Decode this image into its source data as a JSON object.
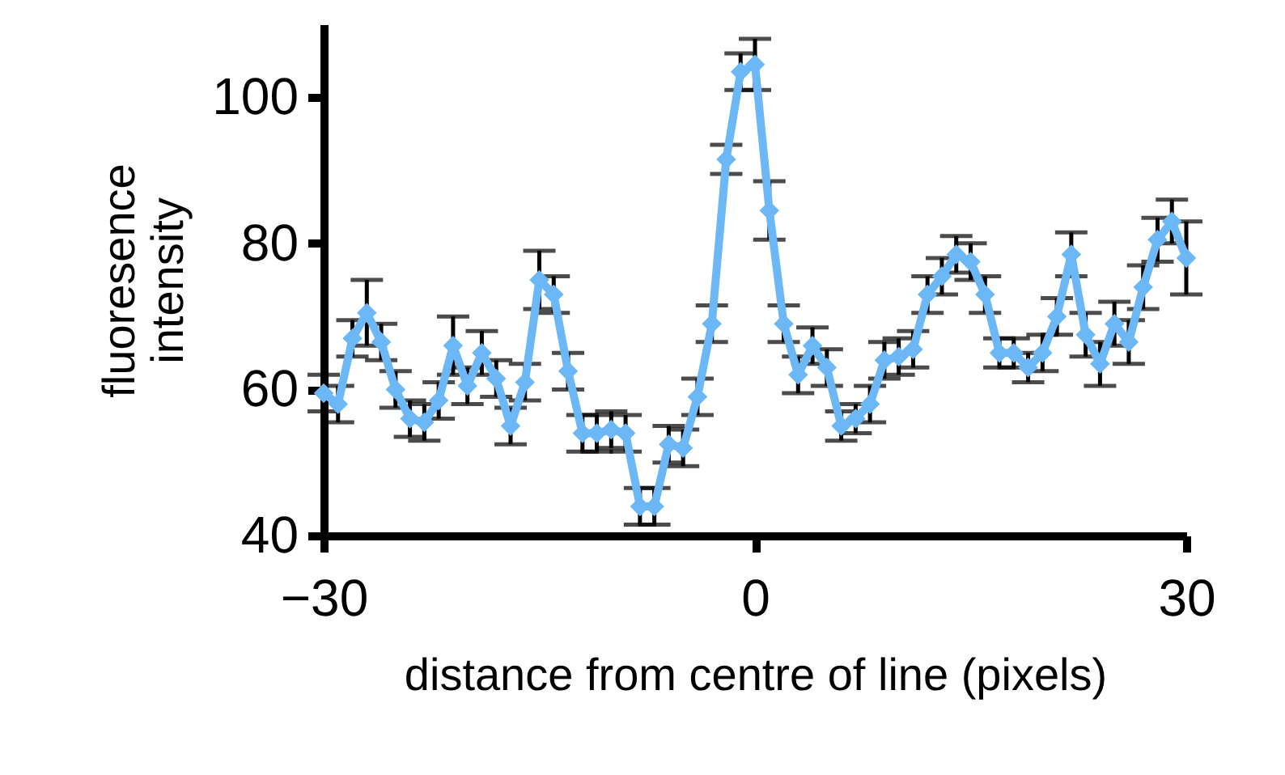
{
  "chart_data": {
    "type": "line",
    "xlabel": "distance from centre of line (pixels)",
    "ylabel": "fluoresence intensity",
    "x": [
      -30,
      -29,
      -28,
      -27,
      -26,
      -25,
      -24,
      -23,
      -22,
      -21,
      -20,
      -19,
      -18,
      -17,
      -16,
      -15,
      -14,
      -13,
      -12,
      -11,
      -10,
      -9,
      -8,
      -7,
      -6,
      -5,
      -4,
      -3,
      -2,
      -1,
      0,
      1,
      2,
      3,
      4,
      5,
      6,
      7,
      8,
      9,
      10,
      11,
      12,
      13,
      14,
      15,
      16,
      17,
      18,
      19,
      20,
      21,
      22,
      23,
      24,
      25,
      26,
      27,
      28,
      29,
      30
    ],
    "series": [
      {
        "color": "#6cb8f6",
        "values": [
          59.5,
          58,
          67,
          70.5,
          66.5,
          60,
          56,
          55.5,
          58.5,
          66,
          60.5,
          65,
          61.5,
          55,
          61,
          75,
          73,
          62.5,
          54,
          54,
          54.5,
          54,
          44,
          44,
          52.5,
          52,
          59,
          69,
          91.5,
          103.5,
          104.5,
          84.5,
          69,
          62,
          66,
          63,
          55,
          56,
          58,
          64,
          64.5,
          65.5,
          73,
          75.5,
          78.5,
          77.5,
          73,
          65,
          65,
          63,
          65,
          70,
          78.5,
          67.5,
          63.5,
          69,
          66.5,
          74,
          80.5,
          83,
          78
        ],
        "errors": [
          2.5,
          2.5,
          2.5,
          4.5,
          2.5,
          2.5,
          2.5,
          2.5,
          2.5,
          4,
          2.5,
          3,
          2.5,
          2.5,
          2.5,
          4,
          2.5,
          2.5,
          2.5,
          2.5,
          2.5,
          2.5,
          2.5,
          2.5,
          2.5,
          2.5,
          2.5,
          2.5,
          2,
          2.5,
          3.5,
          4,
          2.5,
          2.5,
          2.5,
          2.5,
          2,
          2,
          2.5,
          2.5,
          2.5,
          2.5,
          2.5,
          2.5,
          2.5,
          2.5,
          2.5,
          2,
          2,
          2,
          2.5,
          2.5,
          3,
          3,
          3,
          3,
          3,
          3,
          3,
          3,
          5
        ]
      }
    ],
    "xlim": [
      -30,
      30
    ],
    "ylim": [
      40,
      110
    ],
    "xticks": [
      -30,
      0,
      30
    ],
    "yticks": [
      40,
      60,
      80,
      100
    ],
    "marker": "diamond",
    "line_style": "solid"
  }
}
